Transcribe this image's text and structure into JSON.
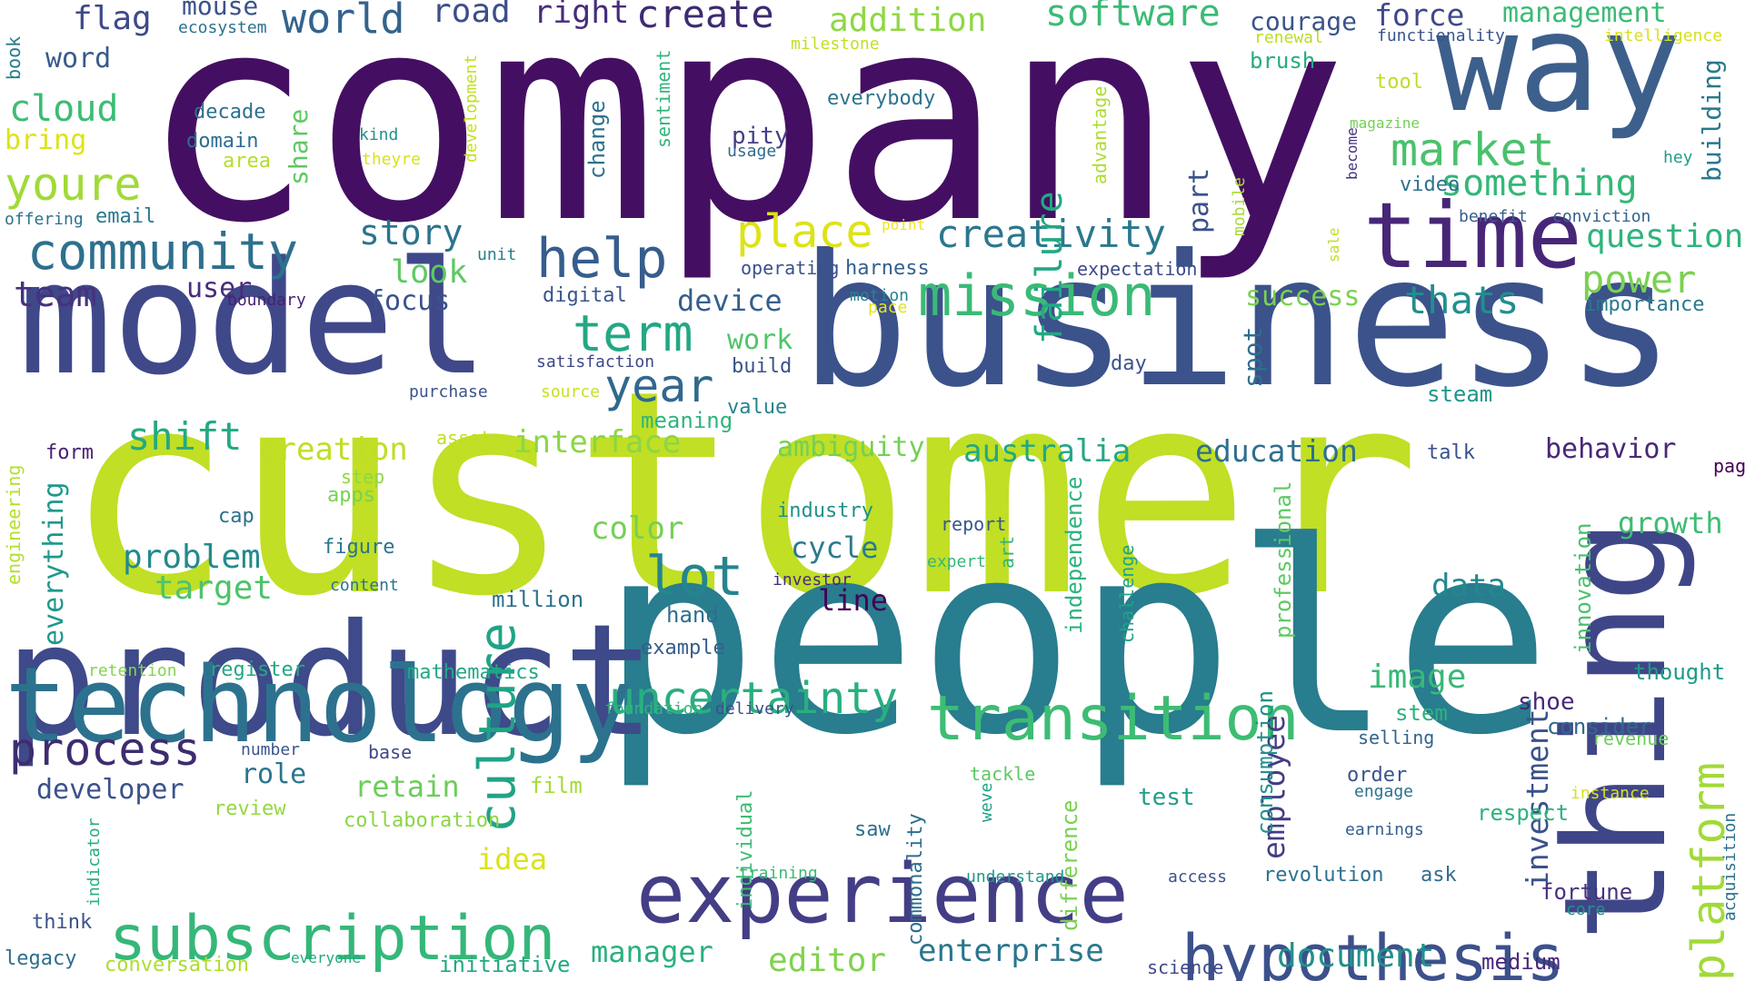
{
  "words": [
    {
      "text": "company",
      "color": "#440f62"
    },
    {
      "text": "customer",
      "color": "#c0df25"
    },
    {
      "text": "people",
      "color": "#287d8e"
    },
    {
      "text": "business",
      "color": "#3b528b"
    },
    {
      "text": "model",
      "color": "#3f4889"
    },
    {
      "text": "product",
      "color": "#3e4a89"
    },
    {
      "text": "technology",
      "color": "#2c728e"
    },
    {
      "text": "way",
      "color": "#3d5f8c"
    },
    {
      "text": "thing",
      "color": "#3f4688"
    },
    {
      "text": "time",
      "color": "#482677"
    },
    {
      "text": "experience",
      "color": "#433e85"
    },
    {
      "text": "subscription",
      "color": "#35b779"
    },
    {
      "text": "hypothesis",
      "color": "#3c508b"
    },
    {
      "text": "transition",
      "color": "#3dbc74"
    },
    {
      "text": "uncertainty",
      "color": "#29af7f"
    },
    {
      "text": "community",
      "color": "#2d708e"
    },
    {
      "text": "mission",
      "color": "#3aba76"
    },
    {
      "text": "market",
      "color": "#4ac16d"
    },
    {
      "text": "help",
      "color": "#365d8d"
    },
    {
      "text": "platform",
      "color": "#a2da37"
    },
    {
      "text": "culture",
      "color": "#20a386"
    },
    {
      "text": "process",
      "color": "#3e2c70"
    },
    {
      "text": "world",
      "color": "#33638d"
    },
    {
      "text": "software",
      "color": "#3bbb75"
    },
    {
      "text": "place",
      "color": "#dde318"
    },
    {
      "text": "term",
      "color": "#22a884"
    },
    {
      "text": "year",
      "color": "#31688e"
    },
    {
      "text": "creativity",
      "color": "#2a788e"
    },
    {
      "text": "youre",
      "color": "#a0da39"
    },
    {
      "text": "cloud",
      "color": "#3dbc74"
    },
    {
      "text": "something",
      "color": "#35b779"
    },
    {
      "text": "power",
      "color": "#7ad151"
    },
    {
      "text": "question",
      "color": "#2fb47c"
    },
    {
      "text": "create",
      "color": "#3f2a70"
    },
    {
      "text": "lot",
      "color": "#25858e"
    },
    {
      "text": "failure",
      "color": "#22a884"
    },
    {
      "text": "thats",
      "color": "#218f8d"
    },
    {
      "text": "employee",
      "color": "#433d84"
    },
    {
      "text": "investment",
      "color": "#3b528b"
    },
    {
      "text": "editor",
      "color": "#7fd34e"
    },
    {
      "text": "enterprise",
      "color": "#2a768e"
    },
    {
      "text": "document",
      "color": "#21918c"
    },
    {
      "text": "manager",
      "color": "#2ab07f"
    },
    {
      "text": "team",
      "color": "#46327e"
    },
    {
      "text": "story",
      "color": "#2b748e"
    },
    {
      "text": "look",
      "color": "#5ec962"
    },
    {
      "text": "focus",
      "color": "#3b528b"
    },
    {
      "text": "user",
      "color": "#472d7b"
    },
    {
      "text": "shift",
      "color": "#23a983"
    },
    {
      "text": "creation",
      "color": "#bddf26"
    },
    {
      "text": "interface",
      "color": "#8bd646"
    },
    {
      "text": "australia",
      "color": "#22a785"
    },
    {
      "text": "education",
      "color": "#2e6f8e"
    },
    {
      "text": "ambiguity",
      "color": "#73d056"
    },
    {
      "text": "behavior",
      "color": "#482878"
    },
    {
      "text": "problem",
      "color": "#238a8d"
    },
    {
      "text": "target",
      "color": "#4ec36b"
    },
    {
      "text": "color",
      "color": "#75d054"
    },
    {
      "text": "cycle",
      "color": "#2a7b8e"
    },
    {
      "text": "line",
      "color": "#440154"
    },
    {
      "text": "data",
      "color": "#24878e"
    },
    {
      "text": "growth",
      "color": "#3dbc74"
    },
    {
      "text": "image",
      "color": "#39b977"
    },
    {
      "text": "retain",
      "color": "#6ccd5a"
    },
    {
      "text": "role",
      "color": "#2b758e"
    },
    {
      "text": "developer",
      "color": "#3b518b"
    },
    {
      "text": "idea",
      "color": "#dae319"
    },
    {
      "text": "device",
      "color": "#355f8d"
    },
    {
      "text": "work",
      "color": "#52c569"
    },
    {
      "text": "word",
      "color": "#375a8c"
    },
    {
      "text": "flag",
      "color": "#3e4a89"
    },
    {
      "text": "road",
      "color": "#3c4f8a"
    },
    {
      "text": "right",
      "color": "#472c7a"
    },
    {
      "text": "addition",
      "color": "#8fd744"
    },
    {
      "text": "courage",
      "color": "#3a548c"
    },
    {
      "text": "force",
      "color": "#3e4989"
    },
    {
      "text": "management",
      "color": "#3bbb75"
    },
    {
      "text": "bring",
      "color": "#dde318"
    },
    {
      "text": "mouse",
      "color": "#3b528b"
    },
    {
      "text": "ecosystem",
      "color": "#2c728e"
    },
    {
      "text": "milestone",
      "color": "#c2df23"
    },
    {
      "text": "renewal",
      "color": "#bade28"
    },
    {
      "text": "functionality",
      "color": "#3a548c"
    },
    {
      "text": "intelligence",
      "color": "#d8e219"
    },
    {
      "text": "brush",
      "color": "#25ac82"
    },
    {
      "text": "tool",
      "color": "#bddf26"
    },
    {
      "text": "book",
      "color": "#287c8e"
    },
    {
      "text": "decade",
      "color": "#2c718e"
    },
    {
      "text": "domain",
      "color": "#2e6e8e"
    },
    {
      "text": "area",
      "color": "#b5de2b"
    },
    {
      "text": "kind",
      "color": "#21918c"
    },
    {
      "text": "theyre",
      "color": "#dae319"
    },
    {
      "text": "development",
      "color": "#c5e021"
    },
    {
      "text": "change",
      "color": "#2c728e"
    },
    {
      "text": "sentiment",
      "color": "#31b57b"
    },
    {
      "text": "pity",
      "color": "#433e85"
    },
    {
      "text": "usage",
      "color": "#31688e"
    },
    {
      "text": "everybody",
      "color": "#2b748e"
    },
    {
      "text": "advantage",
      "color": "#addc30"
    },
    {
      "text": "magazine",
      "color": "#73d056"
    },
    {
      "text": "hey",
      "color": "#1f9e89"
    },
    {
      "text": "video",
      "color": "#2d718e"
    },
    {
      "text": "become",
      "color": "#46337f"
    },
    {
      "text": "benefit",
      "color": "#365c8d"
    },
    {
      "text": "conviction",
      "color": "#33638d"
    },
    {
      "text": "building",
      "color": "#2a788e"
    },
    {
      "text": "share",
      "color": "#5ec962"
    },
    {
      "text": "part",
      "color": "#3b528b"
    },
    {
      "text": "mobile",
      "color": "#a8db34"
    },
    {
      "text": "sale",
      "color": "#bddf26"
    },
    {
      "text": "offering",
      "color": "#2c728e"
    },
    {
      "text": "email",
      "color": "#2a788e"
    },
    {
      "text": "unit",
      "color": "#287d8e"
    },
    {
      "text": "point",
      "color": "#f1e51d"
    },
    {
      "text": "operating",
      "color": "#3b518b"
    },
    {
      "text": "harness",
      "color": "#34618d"
    },
    {
      "text": "expectation",
      "color": "#3e4c8a"
    },
    {
      "text": "importance",
      "color": "#2a788e"
    },
    {
      "text": "boundary",
      "color": "#482173"
    },
    {
      "text": "digital",
      "color": "#39568c"
    },
    {
      "text": "motion",
      "color": "#26828e"
    },
    {
      "text": "pace",
      "color": "#e5e419"
    },
    {
      "text": "success",
      "color": "#7ad151"
    },
    {
      "text": "satisfaction",
      "color": "#3f4788"
    },
    {
      "text": "build",
      "color": "#3b528b"
    },
    {
      "text": "day",
      "color": "#3a538b"
    },
    {
      "text": "spot",
      "color": "#2e6e8e"
    },
    {
      "text": "steam",
      "color": "#1f968b"
    },
    {
      "text": "purchase",
      "color": "#3a538b"
    },
    {
      "text": "source",
      "color": "#c8e020"
    },
    {
      "text": "value",
      "color": "#25848e"
    },
    {
      "text": "meaning",
      "color": "#2fb47c"
    },
    {
      "text": "asset",
      "color": "#bddf26"
    },
    {
      "text": "form",
      "color": "#482173"
    },
    {
      "text": "talk",
      "color": "#3a538b"
    },
    {
      "text": "page",
      "color": "#440154"
    },
    {
      "text": "engineering",
      "color": "#b5de2b"
    },
    {
      "text": "step",
      "color": "#8fd744"
    },
    {
      "text": "apps",
      "color": "#7ad151"
    },
    {
      "text": "cap",
      "color": "#2d708e"
    },
    {
      "text": "everything",
      "color": "#1f988b"
    },
    {
      "text": "figure",
      "color": "#2b748e"
    },
    {
      "text": "content",
      "color": "#2c728e"
    },
    {
      "text": "million",
      "color": "#2c728e"
    },
    {
      "text": "industry",
      "color": "#21918c"
    },
    {
      "text": "report",
      "color": "#39568c"
    },
    {
      "text": "expert",
      "color": "#35b779"
    },
    {
      "text": "art",
      "color": "#2fb47c"
    },
    {
      "text": "investor",
      "color": "#472a7a"
    },
    {
      "text": "independence",
      "color": "#2db27d"
    },
    {
      "text": "challenge",
      "color": "#20a386"
    },
    {
      "text": "professional",
      "color": "#5ec962"
    },
    {
      "text": "innovation",
      "color": "#4ac16d"
    },
    {
      "text": "hand",
      "color": "#2e6e8e"
    },
    {
      "text": "example",
      "color": "#355e8d"
    },
    {
      "text": "thought",
      "color": "#1f9a8a"
    },
    {
      "text": "retention",
      "color": "#84d44b"
    },
    {
      "text": "register",
      "color": "#22a884"
    },
    {
      "text": "mathematics",
      "color": "#22a884"
    },
    {
      "text": "foundation",
      "color": "#2fb47c"
    },
    {
      "text": "delivery",
      "color": "#3d4e8a"
    },
    {
      "text": "shoe",
      "color": "#482878"
    },
    {
      "text": "consider",
      "color": "#31688e"
    },
    {
      "text": "revenue",
      "color": "#6ccd5a"
    },
    {
      "text": "selling",
      "color": "#33638d"
    },
    {
      "text": "stem",
      "color": "#2db27d"
    },
    {
      "text": "number",
      "color": "#39568c"
    },
    {
      "text": "base",
      "color": "#3f4889"
    },
    {
      "text": "film",
      "color": "#a5db36"
    },
    {
      "text": "review",
      "color": "#95d840"
    },
    {
      "text": "collaboration",
      "color": "#8bd646"
    },
    {
      "text": "individual",
      "color": "#3dbc74"
    },
    {
      "text": "commonality",
      "color": "#2e6e8e"
    },
    {
      "text": "tackle",
      "color": "#5ec962"
    },
    {
      "text": "weve",
      "color": "#1fa187"
    },
    {
      "text": "difference",
      "color": "#7ad151"
    },
    {
      "text": "consumption",
      "color": "#21918c"
    },
    {
      "text": "order",
      "color": "#3a548c"
    },
    {
      "text": "engage",
      "color": "#2c718e"
    },
    {
      "text": "instance",
      "color": "#d8e219"
    },
    {
      "text": "test",
      "color": "#1fa088"
    },
    {
      "text": "respect",
      "color": "#2db27d"
    },
    {
      "text": "saw",
      "color": "#2e6e8e"
    },
    {
      "text": "earnings",
      "color": "#355f8d"
    },
    {
      "text": "acquisition",
      "color": "#2c718e"
    },
    {
      "text": "indicator",
      "color": "#27ad81"
    },
    {
      "text": "training",
      "color": "#3aba76"
    },
    {
      "text": "understand",
      "color": "#1f968b"
    },
    {
      "text": "access",
      "color": "#3a548c"
    },
    {
      "text": "revolution",
      "color": "#2c718e"
    },
    {
      "text": "ask",
      "color": "#2e6e8e"
    },
    {
      "text": "fortune",
      "color": "#46327e"
    },
    {
      "text": "core",
      "color": "#1f968b"
    },
    {
      "text": "think",
      "color": "#3b528b"
    },
    {
      "text": "legacy",
      "color": "#2e6e8e"
    },
    {
      "text": "conversation",
      "color": "#addc30"
    },
    {
      "text": "everyone",
      "color": "#22a884"
    },
    {
      "text": "initiative",
      "color": "#23a983"
    },
    {
      "text": "science",
      "color": "#3e4989"
    },
    {
      "text": "medium",
      "color": "#482878"
    }
  ]
}
